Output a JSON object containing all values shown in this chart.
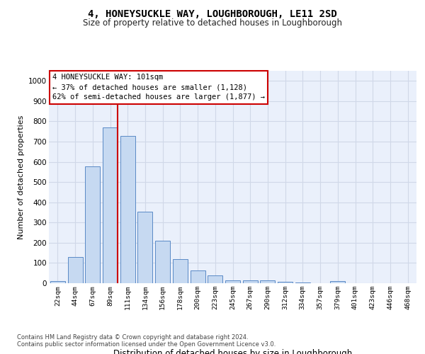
{
  "title": "4, HONEYSUCKLE WAY, LOUGHBOROUGH, LE11 2SD",
  "subtitle": "Size of property relative to detached houses in Loughborough",
  "xlabel": "Distribution of detached houses by size in Loughborough",
  "ylabel": "Number of detached properties",
  "footnote1": "Contains HM Land Registry data © Crown copyright and database right 2024.",
  "footnote2": "Contains public sector information licensed under the Open Government Licence v3.0.",
  "bar_labels": [
    "22sqm",
    "44sqm",
    "67sqm",
    "89sqm",
    "111sqm",
    "134sqm",
    "156sqm",
    "178sqm",
    "200sqm",
    "223sqm",
    "245sqm",
    "267sqm",
    "290sqm",
    "312sqm",
    "334sqm",
    "357sqm",
    "379sqm",
    "401sqm",
    "423sqm",
    "446sqm",
    "468sqm"
  ],
  "bar_values": [
    10,
    128,
    578,
    770,
    728,
    355,
    210,
    120,
    63,
    37,
    15,
    15,
    13,
    6,
    5,
    0,
    10,
    0,
    0,
    0,
    0
  ],
  "bar_color": "#c6d9f1",
  "bar_edge_color": "#5a8ac6",
  "vline_pos": 3.43,
  "vline_color": "#cc0000",
  "ylim": [
    0,
    1050
  ],
  "yticks": [
    0,
    100,
    200,
    300,
    400,
    500,
    600,
    700,
    800,
    900,
    1000
  ],
  "annotation_text_line1": "4 HONEYSUCKLE WAY: 101sqm",
  "annotation_text_line2": "← 37% of detached houses are smaller (1,128)",
  "annotation_text_line3": "62% of semi-detached houses are larger (1,877) →",
  "annotation_box_edge_color": "#cc0000",
  "grid_color": "#d0d8e8",
  "bg_color": "#eaf0fb",
  "title_fontsize": 10,
  "subtitle_fontsize": 8.5,
  "annotation_fontsize": 7.5,
  "ylabel_fontsize": 8,
  "xlabel_fontsize": 8.5,
  "footnote_fontsize": 6.0
}
